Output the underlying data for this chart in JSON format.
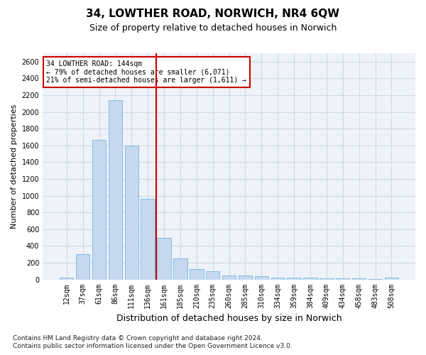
{
  "title1": "34, LOWTHER ROAD, NORWICH, NR4 6QW",
  "title2": "Size of property relative to detached houses in Norwich",
  "xlabel": "Distribution of detached houses by size in Norwich",
  "ylabel": "Number of detached properties",
  "categories": [
    "12sqm",
    "37sqm",
    "61sqm",
    "86sqm",
    "111sqm",
    "136sqm",
    "161sqm",
    "185sqm",
    "210sqm",
    "235sqm",
    "260sqm",
    "285sqm",
    "310sqm",
    "334sqm",
    "359sqm",
    "384sqm",
    "409sqm",
    "434sqm",
    "458sqm",
    "483sqm",
    "508sqm"
  ],
  "values": [
    25,
    300,
    1670,
    2140,
    1600,
    960,
    500,
    250,
    120,
    100,
    50,
    50,
    35,
    25,
    20,
    20,
    10,
    15,
    10,
    5,
    25
  ],
  "bar_color": "#c5d8f0",
  "bar_edge_color": "#6aaed6",
  "grid_color": "#d0d8e8",
  "bg_color": "#eef2f9",
  "vline_x": 5.5,
  "vline_color": "#cc0000",
  "annotation_line1": "34 LOWTHER ROAD: 144sqm",
  "annotation_line2": "← 79% of detached houses are smaller (6,071)",
  "annotation_line3": "21% of semi-detached houses are larger (1,611) →",
  "annotation_box_color": "#cc0000",
  "ylim": [
    0,
    2700
  ],
  "yticks": [
    0,
    200,
    400,
    600,
    800,
    1000,
    1200,
    1400,
    1600,
    1800,
    2000,
    2200,
    2400,
    2600
  ],
  "footer1": "Contains HM Land Registry data © Crown copyright and database right 2024.",
  "footer2": "Contains public sector information licensed under the Open Government Licence v3.0.",
  "title1_fontsize": 11,
  "title2_fontsize": 9,
  "xlabel_fontsize": 9,
  "ylabel_fontsize": 8,
  "tick_fontsize": 7,
  "annot_fontsize": 7,
  "footer_fontsize": 6.5
}
